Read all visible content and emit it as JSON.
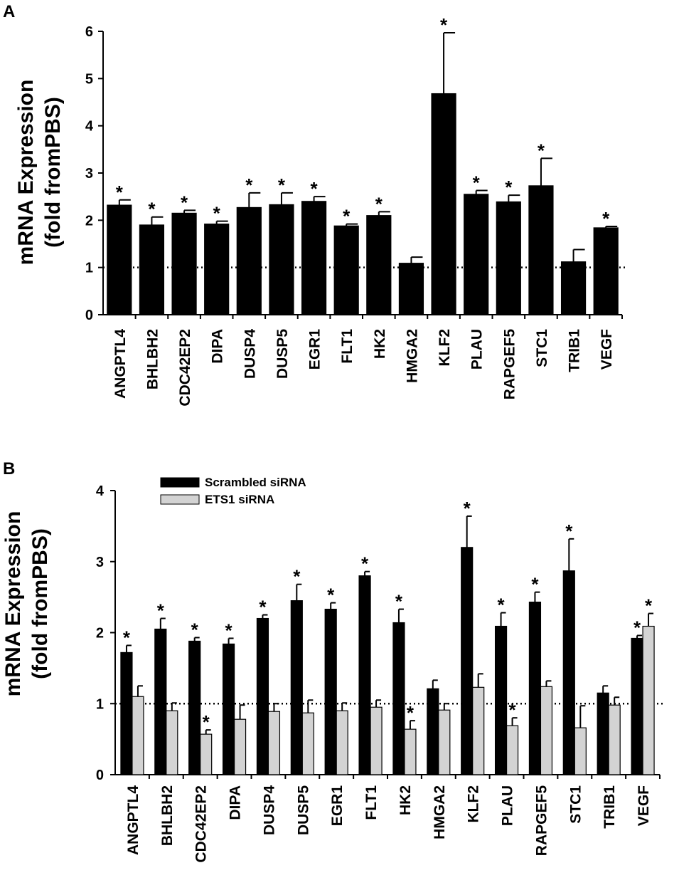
{
  "chart_data": [
    {
      "type": "bar",
      "panel": "A",
      "ylabel_line1": "mRNA Expression",
      "ylabel_line2": "(fold fromPBS)",
      "ylim": [
        0,
        6
      ],
      "yticks": [
        0,
        1,
        2,
        3,
        4,
        5,
        6
      ],
      "reference_line": 1,
      "categories": [
        "ANGPTL4",
        "BHLBH2",
        "CDC42EP2",
        "DIPA",
        "DUSP4",
        "DUSP5",
        "EGR1",
        "FLT1",
        "HK2",
        "HMGA2",
        "KLF2",
        "PLAU",
        "RAPGEF5",
        "STC1",
        "TRIB1",
        "VEGF"
      ],
      "series": [
        {
          "name": "",
          "color": "#000000",
          "values": [
            2.32,
            1.9,
            2.15,
            1.92,
            2.27,
            2.33,
            2.4,
            1.88,
            2.1,
            1.09,
            4.68,
            2.55,
            2.39,
            2.73,
            1.12,
            1.84
          ],
          "errors": [
            0.11,
            0.17,
            0.06,
            0.06,
            0.31,
            0.25,
            0.1,
            0.04,
            0.08,
            0.13,
            1.29,
            0.08,
            0.14,
            0.58,
            0.26,
            0.03
          ],
          "significant": [
            true,
            true,
            true,
            true,
            true,
            true,
            true,
            true,
            true,
            false,
            true,
            true,
            true,
            true,
            false,
            true
          ]
        }
      ],
      "star_label": "*"
    },
    {
      "type": "bar",
      "panel": "B",
      "ylabel_line1": "mRNA Expression",
      "ylabel_line2": "(fold fromPBS)",
      "ylim": [
        0,
        4
      ],
      "yticks": [
        0,
        1,
        2,
        3,
        4
      ],
      "reference_line": 1,
      "legend_position": "top-left",
      "categories": [
        "ANGPTL4",
        "BHLBH2",
        "CDC42EP2",
        "DIPA",
        "DUSP4",
        "DUSP5",
        "EGR1",
        "FLT1",
        "HK2",
        "HMGA2",
        "KLF2",
        "PLAU",
        "RAPGEF5",
        "STC1",
        "TRIB1",
        "VEGF"
      ],
      "series": [
        {
          "name": "Scrambled siRNA",
          "color": "#000000",
          "values": [
            1.72,
            2.05,
            1.88,
            1.84,
            2.2,
            2.45,
            2.33,
            2.8,
            2.14,
            1.21,
            3.2,
            2.09,
            2.43,
            2.87,
            1.15,
            1.92
          ],
          "errors": [
            0.1,
            0.15,
            0.05,
            0.08,
            0.05,
            0.23,
            0.09,
            0.06,
            0.19,
            0.12,
            0.44,
            0.19,
            0.14,
            0.45,
            0.1,
            0.04
          ],
          "significant": [
            true,
            true,
            true,
            true,
            true,
            true,
            true,
            true,
            true,
            false,
            true,
            true,
            true,
            true,
            false,
            true
          ]
        },
        {
          "name": "ETS1 siRNA",
          "color": "#d3d3d3",
          "values": [
            1.1,
            0.9,
            0.57,
            0.78,
            0.89,
            0.87,
            0.9,
            0.95,
            0.64,
            0.91,
            1.23,
            0.69,
            1.24,
            0.66,
            0.98,
            2.09
          ],
          "errors": [
            0.15,
            0.11,
            0.06,
            0.2,
            0.11,
            0.18,
            0.11,
            0.1,
            0.12,
            0.09,
            0.19,
            0.11,
            0.08,
            0.31,
            0.11,
            0.18
          ],
          "significant": [
            false,
            false,
            true,
            false,
            false,
            false,
            false,
            false,
            true,
            false,
            false,
            true,
            false,
            false,
            false,
            true
          ]
        }
      ],
      "star_label": "*"
    }
  ]
}
